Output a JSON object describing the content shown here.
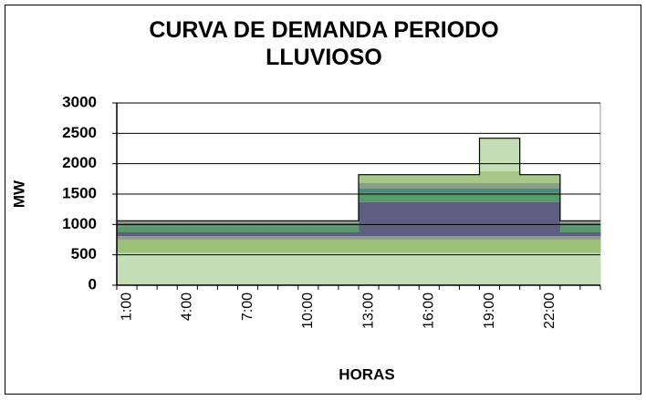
{
  "chart_data": {
    "type": "stacked_step_area",
    "title": "CURVA DE DEMANDA PERIODO LLUVIOSO",
    "x_label": "HORAS",
    "y_label": "MW",
    "categories": [
      "1:00",
      null,
      null,
      "4:00",
      null,
      null,
      "7:00",
      null,
      null,
      "10:00",
      null,
      null,
      "13:00",
      null,
      null,
      "16:00",
      null,
      null,
      "19:00",
      null,
      null,
      "22:00",
      null,
      null
    ],
    "ylim": [
      0,
      3000
    ],
    "yticks": [
      0,
      500,
      1000,
      1500,
      2000,
      2500,
      3000
    ],
    "grid": true,
    "series": [
      {
        "color": "#c6deb8",
        "values": [
          530,
          530,
          530,
          530,
          530,
          530,
          530,
          530,
          530,
          530,
          530,
          530,
          530,
          530,
          530,
          530,
          530,
          530,
          530,
          530,
          530,
          530,
          530,
          530
        ]
      },
      {
        "color": "#9cc27a",
        "values": [
          220,
          220,
          220,
          220,
          220,
          220,
          220,
          220,
          220,
          220,
          220,
          220,
          220,
          220,
          220,
          220,
          220,
          220,
          220,
          220,
          220,
          220,
          220,
          220
        ]
      },
      {
        "color": "#8f9e8c",
        "values": [
          60,
          60,
          60,
          60,
          60,
          60,
          60,
          60,
          60,
          60,
          60,
          60,
          60,
          60,
          60,
          60,
          60,
          60,
          60,
          60,
          60,
          60,
          60,
          60
        ]
      },
      {
        "color": "#5e5e82",
        "values": [
          60,
          60,
          60,
          60,
          60,
          60,
          60,
          60,
          60,
          60,
          60,
          60,
          560,
          560,
          560,
          560,
          560,
          560,
          560,
          560,
          560,
          560,
          60,
          60
        ]
      },
      {
        "color": "#5a9a6a",
        "values": [
          100,
          100,
          100,
          100,
          100,
          100,
          100,
          100,
          100,
          100,
          100,
          100,
          160,
          160,
          160,
          160,
          160,
          160,
          160,
          160,
          160,
          160,
          100,
          100
        ]
      },
      {
        "color": "#4f8a80",
        "values": [
          50,
          50,
          50,
          50,
          50,
          50,
          50,
          50,
          50,
          50,
          50,
          50,
          60,
          60,
          60,
          60,
          60,
          60,
          60,
          60,
          60,
          60,
          50,
          50
        ]
      },
      {
        "color": "#8aa08a",
        "values": [
          40,
          40,
          40,
          40,
          40,
          40,
          40,
          40,
          40,
          40,
          40,
          40,
          90,
          90,
          90,
          90,
          90,
          90,
          90,
          90,
          90,
          90,
          40,
          40
        ]
      },
      {
        "color": "#a8c88a",
        "values": [
          0,
          0,
          0,
          0,
          0,
          0,
          0,
          0,
          0,
          0,
          0,
          0,
          140,
          140,
          140,
          140,
          140,
          140,
          200,
          200,
          140,
          140,
          0,
          0
        ]
      },
      {
        "color": "#c6deb8",
        "values": [
          0,
          0,
          0,
          0,
          0,
          0,
          0,
          0,
          0,
          0,
          0,
          0,
          0,
          0,
          0,
          0,
          0,
          0,
          540,
          540,
          0,
          0,
          0,
          0
        ]
      }
    ]
  }
}
